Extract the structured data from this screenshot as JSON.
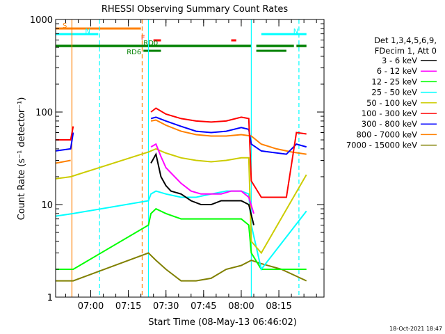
{
  "chart_data": {
    "type": "line",
    "title": "RHESSI Observing Summary Count Rates",
    "xlabel": "Start Time (08-May-13 06:46:02)",
    "ylabel": "Count Rate (s⁻¹ detector⁻¹)",
    "y_scale": "log",
    "ylim": [
      1,
      1000
    ],
    "x_unit": "minutes after 06:46:02",
    "xlim": [
      0,
      107
    ],
    "x_ticks": [
      {
        "t": 14,
        "label": "07:00"
      },
      {
        "t": 29,
        "label": "07:15"
      },
      {
        "t": 44,
        "label": "07:30"
      },
      {
        "t": 59,
        "label": "07:45"
      },
      {
        "t": 74,
        "label": "08:00"
      },
      {
        "t": 89,
        "label": "08:15"
      }
    ],
    "y_ticks": [
      {
        "v": 1,
        "label": "1"
      },
      {
        "v": 10,
        "label": "10"
      },
      {
        "v": 100,
        "label": "100"
      },
      {
        "v": 1000,
        "label": "1000"
      }
    ],
    "legend_header": [
      "Det 1,3,4,5,6,9,",
      "FDecim 1, Att 0"
    ],
    "legend_placement": "right",
    "series": [
      {
        "name": "3 - 6 keV",
        "color": "#000000",
        "points": [
          [
            0,
            null
          ],
          [
            7,
            null
          ],
          [
            37,
            null
          ],
          [
            38,
            28
          ],
          [
            40,
            35
          ],
          [
            42,
            20
          ],
          [
            44,
            16
          ],
          [
            46,
            14
          ],
          [
            50,
            13
          ],
          [
            54,
            11
          ],
          [
            58,
            10
          ],
          [
            62,
            10
          ],
          [
            66,
            11
          ],
          [
            70,
            11
          ],
          [
            74,
            11
          ],
          [
            77,
            10
          ],
          [
            79,
            6
          ],
          [
            82,
            null
          ]
        ]
      },
      {
        "name": "6 - 12 keV",
        "color": "#ff00ff",
        "points": [
          [
            0,
            null
          ],
          [
            7,
            null
          ],
          [
            37,
            null
          ],
          [
            38,
            42
          ],
          [
            40,
            45
          ],
          [
            42,
            33
          ],
          [
            44,
            25
          ],
          [
            46,
            22
          ],
          [
            50,
            17
          ],
          [
            54,
            14
          ],
          [
            58,
            13
          ],
          [
            62,
            13
          ],
          [
            66,
            13
          ],
          [
            70,
            14
          ],
          [
            74,
            14
          ],
          [
            77,
            12
          ],
          [
            79,
            8
          ],
          [
            82,
            null
          ]
        ]
      },
      {
        "name": "12 - 25 keV",
        "color": "#00ff00",
        "points": [
          [
            0,
            2
          ],
          [
            7,
            2
          ],
          [
            37,
            6
          ],
          [
            38,
            8
          ],
          [
            40,
            9
          ],
          [
            44,
            8
          ],
          [
            50,
            7
          ],
          [
            56,
            7
          ],
          [
            62,
            7
          ],
          [
            68,
            7
          ],
          [
            74,
            7
          ],
          [
            77,
            6
          ],
          [
            78,
            3
          ],
          [
            82,
            2
          ],
          [
            100,
            2
          ]
        ]
      },
      {
        "name": "25 - 50 keV",
        "color": "#00ffff",
        "points": [
          [
            0,
            7.5
          ],
          [
            7,
            8
          ],
          [
            37,
            11
          ],
          [
            38,
            13
          ],
          [
            40,
            14
          ],
          [
            44,
            13
          ],
          [
            50,
            12
          ],
          [
            56,
            12
          ],
          [
            62,
            13
          ],
          [
            68,
            14
          ],
          [
            74,
            14
          ],
          [
            77,
            13
          ],
          [
            78,
            6
          ],
          [
            82,
            2
          ],
          [
            100,
            8.5
          ]
        ]
      },
      {
        "name": "50 - 100 keV",
        "color": "#cccc00",
        "points": [
          [
            0,
            19
          ],
          [
            6,
            20
          ],
          [
            37,
            37
          ],
          [
            40,
            40
          ],
          [
            44,
            36
          ],
          [
            50,
            32
          ],
          [
            56,
            30
          ],
          [
            62,
            29
          ],
          [
            68,
            30
          ],
          [
            74,
            32
          ],
          [
            77,
            32
          ],
          [
            78,
            4
          ],
          [
            82,
            3
          ],
          [
            100,
            21
          ]
        ]
      },
      {
        "name": "100 - 300 keV",
        "color": "#ff0000",
        "points": [
          [
            0,
            50
          ],
          [
            6,
            50
          ],
          [
            7,
            70
          ],
          [
            37,
            null
          ],
          [
            38,
            100
          ],
          [
            40,
            110
          ],
          [
            44,
            95
          ],
          [
            50,
            85
          ],
          [
            56,
            80
          ],
          [
            62,
            78
          ],
          [
            68,
            80
          ],
          [
            74,
            88
          ],
          [
            77,
            85
          ],
          [
            78,
            18
          ],
          [
            82,
            12
          ],
          [
            92,
            12
          ],
          [
            96,
            60
          ],
          [
            100,
            58
          ]
        ]
      },
      {
        "name": "300 - 800 keV",
        "color": "#0000ff",
        "points": [
          [
            0,
            38
          ],
          [
            6,
            40
          ],
          [
            7,
            60
          ],
          [
            37,
            null
          ],
          [
            38,
            85
          ],
          [
            40,
            88
          ],
          [
            44,
            80
          ],
          [
            50,
            70
          ],
          [
            56,
            62
          ],
          [
            62,
            60
          ],
          [
            68,
            62
          ],
          [
            74,
            68
          ],
          [
            77,
            65
          ],
          [
            78,
            45
          ],
          [
            82,
            38
          ],
          [
            92,
            35
          ],
          [
            96,
            45
          ],
          [
            100,
            42
          ]
        ]
      },
      {
        "name": "800 - 7000 keV",
        "color": "#ff8000",
        "points": [
          [
            0,
            28
          ],
          [
            6,
            30
          ],
          [
            37,
            null
          ],
          [
            38,
            80
          ],
          [
            40,
            82
          ],
          [
            44,
            72
          ],
          [
            50,
            62
          ],
          [
            56,
            57
          ],
          [
            62,
            55
          ],
          [
            68,
            55
          ],
          [
            74,
            57
          ],
          [
            78,
            55
          ],
          [
            82,
            45
          ],
          [
            88,
            40
          ],
          [
            94,
            37
          ],
          [
            100,
            35
          ]
        ]
      },
      {
        "name": "7000 - 15000 keV",
        "color": "#808000",
        "points": [
          [
            0,
            1.5
          ],
          [
            7,
            1.5
          ],
          [
            37,
            3
          ],
          [
            40,
            2.5
          ],
          [
            44,
            2
          ],
          [
            50,
            1.5
          ],
          [
            56,
            1.5
          ],
          [
            62,
            1.6
          ],
          [
            68,
            2
          ],
          [
            74,
            2.2
          ],
          [
            78,
            2.5
          ],
          [
            82,
            2.3
          ],
          [
            90,
            2
          ],
          [
            100,
            1.5
          ]
        ]
      }
    ],
    "flags": [
      {
        "label": "S",
        "color": "#ff8000",
        "text_color": "#ff8000",
        "t_start": 0,
        "t_end": 34,
        "level": "S"
      },
      {
        "label": "N",
        "color": "#00ffff",
        "text_color": "#00ffff",
        "t_start": 0,
        "t_end": 17,
        "level": "N"
      },
      {
        "label": "N",
        "color": "#00ffff",
        "text_color": "#00ffff",
        "t_start": 82,
        "t_end": 100,
        "level": "N"
      },
      {
        "label": "F",
        "color": "#ff0000",
        "text_color": "#ff0000",
        "t_start": 39,
        "t_end": 42,
        "level": "F"
      },
      {
        "label": "",
        "color": "#ff0000",
        "text_color": "#ff0000",
        "t_start": 70,
        "t_end": 72,
        "level": "F"
      },
      {
        "label": "RD0",
        "color": "#008000",
        "text_color": "#008000",
        "t_start": 0,
        "t_end": 78,
        "level": "RD0"
      },
      {
        "label": "",
        "color": "#008000",
        "text_color": "#008000",
        "t_start": 80,
        "t_end": 95,
        "level": "RD0"
      },
      {
        "label": "",
        "color": "#008000",
        "text_color": "#008000",
        "t_start": 96,
        "t_end": 100,
        "level": "RD0"
      },
      {
        "label": "RD6",
        "color": "#008000",
        "text_color": "#008000",
        "t_start": 35,
        "t_end": 42,
        "level": "RD6"
      },
      {
        "label": "",
        "color": "#008000",
        "text_color": "#008000",
        "t_start": 80,
        "t_end": 92,
        "level": "RD6"
      }
    ],
    "vertical_lines": [
      {
        "t": 6.5,
        "color": "#ff8000",
        "style": "solid"
      },
      {
        "t": 17.5,
        "color": "#00ffff",
        "style": "dashed"
      },
      {
        "t": 34.5,
        "color": "#ff8000",
        "style": "dashed"
      },
      {
        "t": 37,
        "color": "#00ffff",
        "style": "solid"
      },
      {
        "t": 78,
        "color": "#00ffff",
        "style": "solid"
      },
      {
        "t": 97,
        "color": "#00ffff",
        "style": "dashed"
      }
    ],
    "footer_date": "18-Oct-2021 18:47"
  }
}
